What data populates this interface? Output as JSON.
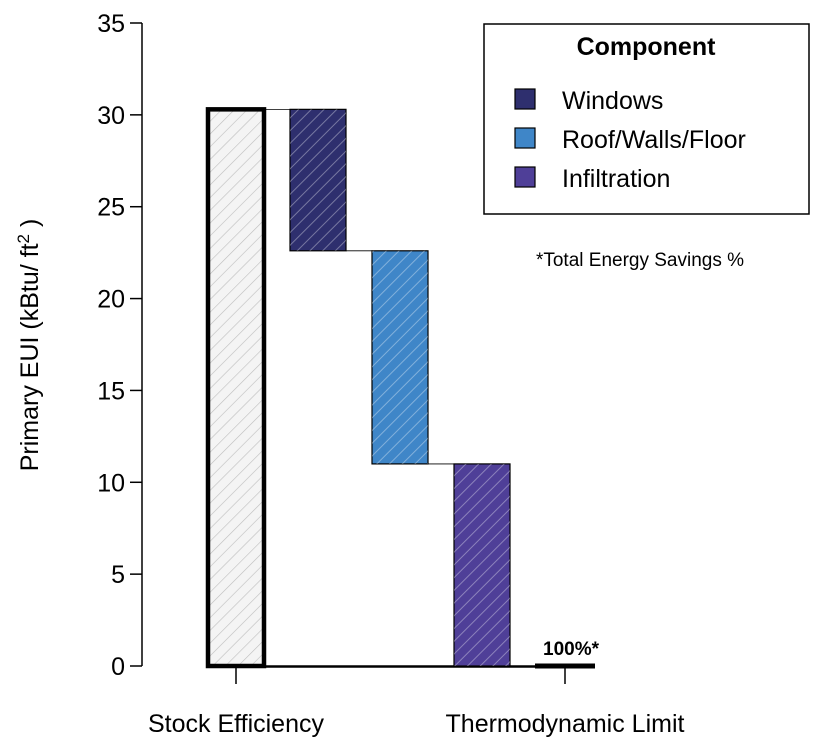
{
  "chart_data": {
    "type": "bar",
    "subtype": "waterfall",
    "categories": [
      "Stock Efficiency",
      "Thermodynamic Limit"
    ],
    "ylabel": "Primary EUI (kBtu/ ft",
    "ylabel_sup": "2",
    "ylabel_close": " )",
    "ylim": [
      0,
      35
    ],
    "yticks": [
      0,
      5,
      10,
      15,
      20,
      25,
      30,
      35
    ],
    "start": {
      "name": "Stock Efficiency",
      "value": 30.3
    },
    "steps": [
      {
        "name": "Windows",
        "from": 30.3,
        "to": 22.6,
        "color": "#2e2f6e"
      },
      {
        "name": "Roof/Walls/Floor",
        "from": 22.6,
        "to": 11.0,
        "color": "#3f86c8"
      },
      {
        "name": "Infiltration",
        "from": 11.0,
        "to": 0,
        "color": "#4f3f98"
      }
    ],
    "end": {
      "name": "Thermodynamic Limit",
      "value": 0,
      "label": "100%*"
    },
    "legend": {
      "title": "Component",
      "position": "top-right",
      "entries": [
        {
          "name": "Windows",
          "color": "#2e2f6e"
        },
        {
          "name": "Roof/Walls/Floor",
          "color": "#3f86c8"
        },
        {
          "name": "Infiltration",
          "color": "#4f3f98"
        }
      ]
    },
    "note": "*Total Energy Savings %",
    "grid": false
  }
}
